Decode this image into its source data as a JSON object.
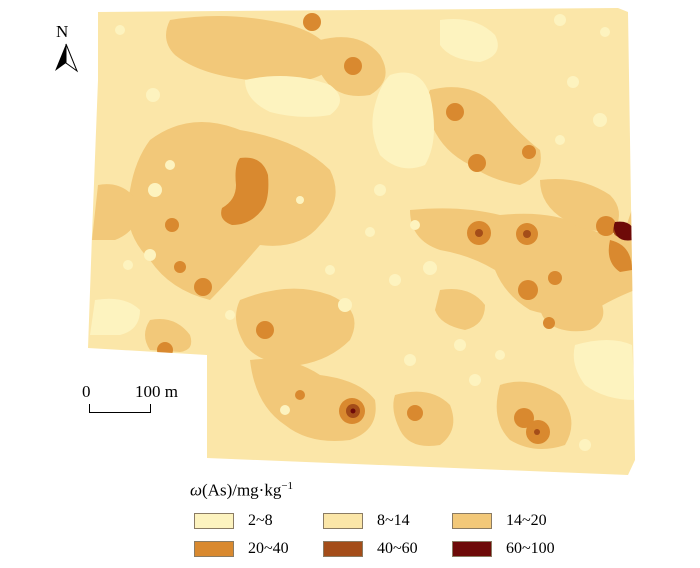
{
  "map": {
    "north_label": "N",
    "scale_zero": "0",
    "scale_distance": "100 m",
    "legend_title_symbol": "ω",
    "legend_title_rest": "(As)/mg·kg",
    "legend_title_exp": "−1",
    "legend": [
      {
        "label": "2~8",
        "color": "#fdf3bf"
      },
      {
        "label": "8~14",
        "color": "#fbe6a8"
      },
      {
        "label": "14~20",
        "color": "#f2c879"
      },
      {
        "label": "20~40",
        "color": "#d9892f"
      },
      {
        "label": "40~60",
        "color": "#a44d19"
      },
      {
        "label": "60~100",
        "color": "#6e0a08"
      }
    ]
  }
}
